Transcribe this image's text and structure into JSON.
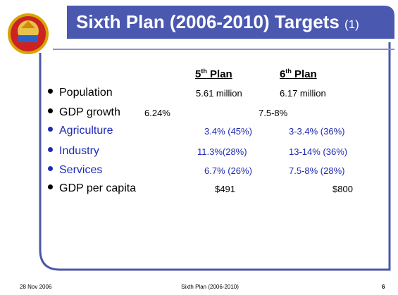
{
  "header": {
    "title": "Sixth Plan (2006-2010) Targets",
    "title_suffix": "(1)"
  },
  "table": {
    "columns": [
      {
        "number": "5",
        "sup": "th",
        "label": "Plan"
      },
      {
        "number": "6",
        "sup": "th",
        "label": "Plan"
      }
    ],
    "rows": [
      {
        "label": "Population",
        "values": [
          "5.61 million",
          "6.17 million"
        ]
      },
      {
        "label": "GDP growth",
        "values": [
          "6.24%",
          "7.5-8%"
        ]
      },
      {
        "label": "Agriculture",
        "values": [
          "3.4% (45%)",
          "3-3.4% (36%)"
        ]
      },
      {
        "label": "Industry",
        "values": [
          "11.3%(28%)",
          "13-14% (36%)"
        ]
      },
      {
        "label": "Services",
        "values": [
          "6.7% (26%)",
          "7.5-8% (28%)"
        ]
      },
      {
        "label": "GDP per capita",
        "values": [
          "$491",
          "$800"
        ]
      }
    ]
  },
  "footer": {
    "date": "28 Nov 2006",
    "title": "Sixth Plan (2006-2010)",
    "page": "6"
  }
}
